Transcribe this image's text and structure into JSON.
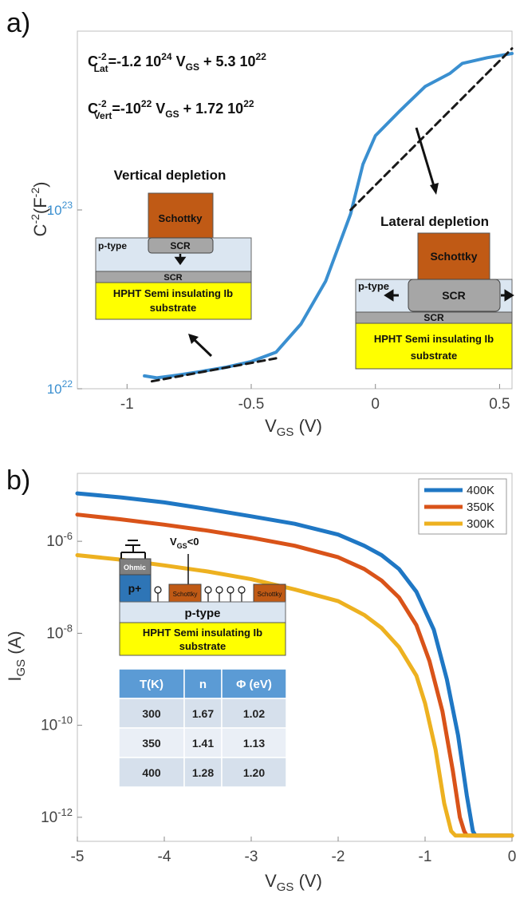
{
  "panels": {
    "a": {
      "label": "a)",
      "equations": {
        "lat": {
          "lhs": "C",
          "sup": "-2",
          "sub": "Lat",
          "rhs_1": "=-1.2 10",
          "rhs_1_exp": "24",
          "rhs_2": " V",
          "rhs_2_sub": "GS",
          "rhs_3": " + 5.3 10",
          "rhs_3_exp": "22"
        },
        "vert": {
          "lhs": "C",
          "sup": "-2",
          "sub": "Vert",
          "rhs_1": "=-10",
          "rhs_1_exp": "22",
          "rhs_2": " V",
          "rhs_2_sub": "GS",
          "rhs_3": " + 1.72 10",
          "rhs_3_exp": "22"
        }
      },
      "inset_vertical": {
        "title": "Vertical depletion",
        "schottky": "Schottky",
        "scr_top": "SCR",
        "ptype": "p-type",
        "scr_bottom": "SCR",
        "substrate_line1": "HPHT Semi insulating Ib",
        "substrate_line2": "substrate"
      },
      "inset_lateral": {
        "title": "Lateral depletion",
        "schottky": "Schottky",
        "scr": "SCR",
        "ptype": "p-type",
        "scr_bottom": "SCR",
        "substrate_line1": "HPHT Semi insulating Ib",
        "substrate_line2": "substrate"
      }
    },
    "b": {
      "label": "b)",
      "inset": {
        "vgs_label": "V",
        "vgs_sub": "GS",
        "vgs_rest": "<0",
        "ohmic": "Ohmic",
        "pplus": "p+",
        "schottky_1": "Schottky",
        "schottky_2": "Schottky",
        "ptype": "p-type",
        "substrate_line1": "HPHT Semi insulating Ib",
        "substrate_line2": "substrate"
      },
      "table": {
        "headers": [
          "T(K)",
          "n",
          "Φ (eV)"
        ],
        "rows": [
          [
            "300",
            "1.67",
            "1.02"
          ],
          [
            "350",
            "1.41",
            "1.13"
          ],
          [
            "400",
            "1.28",
            "1.20"
          ]
        ]
      }
    }
  },
  "colors": {
    "curve_a": "#3a8fd0",
    "fit_a": "#1a1a1a",
    "s400": "#1f77c4",
    "s350": "#d95319",
    "s300": "#edb120",
    "schottky": "#c05a15",
    "substrate": "#ffff00",
    "ptype": "#dbe6f1",
    "scr": "#a6a6a6",
    "pplus": "#2e75b6",
    "ohmic": "#7f7f7f",
    "table_head": "#5b9bd5",
    "table_row_odd": "#d6e0ec",
    "table_row_even": "#eaeff6"
  },
  "chart_data": [
    {
      "type": "line",
      "xlabel": "V",
      "xlabel_sub": "GS",
      "xlabel_unit": " (V)",
      "ylabel": "C",
      "ylabel_sup": "-2",
      "ylabel_unit": "(F",
      "ylabel_unit_sup": "-2",
      "ylabel_close": ")",
      "yscale": "log",
      "xlim": [
        -1.2,
        0.55
      ],
      "ylim": [
        1e+22,
        1e+24
      ],
      "x_ticks": [
        -1,
        -0.5,
        0,
        0.5
      ],
      "x_tick_labels": [
        "-1",
        "-0.5",
        "0",
        "0.5"
      ],
      "y_ticks": [
        {
          "value": 1e+22,
          "base": "10",
          "exp": "22"
        },
        {
          "value": 1e+23,
          "base": "10",
          "exp": "23"
        }
      ],
      "grid": false,
      "series": [
        {
          "style": "solid",
          "x": [
            -0.93,
            -0.88,
            -0.8,
            -0.7,
            -0.6,
            -0.5,
            -0.4,
            -0.3,
            -0.2,
            -0.1,
            -0.05,
            0,
            0.1,
            0.2,
            0.3,
            0.35,
            0.45,
            0.55
          ],
          "y": [
            1.18e+22,
            1.15e+22,
            1.19e+22,
            1.25e+22,
            1.32e+22,
            1.42e+22,
            1.6e+22,
            2.3e+22,
            4e+22,
            9.5e+22,
            1.8e+23,
            2.6e+23,
            3.6e+23,
            4.9e+23,
            5.8e+23,
            6.6e+23,
            7.1e+23,
            7.5e+23
          ]
        },
        {
          "style": "dashed",
          "x": [
            -0.9,
            -0.4
          ],
          "y": [
            1.1e+22,
            1.48e+22
          ]
        },
        {
          "style": "dashed",
          "x": [
            -0.1,
            0.55
          ],
          "y": [
            1e+23,
            8e+23
          ]
        }
      ]
    },
    {
      "type": "line",
      "xlabel": "V",
      "xlabel_sub": "GS",
      "xlabel_unit": " (V)",
      "ylabel": "I",
      "ylabel_sub": "GS",
      "ylabel_unit": " (A)",
      "yscale": "log",
      "xlim": [
        -5,
        0
      ],
      "ylim": [
        3e-13,
        3e-05
      ],
      "x_ticks": [
        -5,
        -4,
        -3,
        -2,
        -1,
        0
      ],
      "x_tick_labels": [
        "-5",
        "-4",
        "-3",
        "-2",
        "-1",
        "0"
      ],
      "y_ticks": [
        {
          "value": 1e-06,
          "base": "10",
          "exp": "-6"
        },
        {
          "value": 1e-08,
          "base": "10",
          "exp": "-8"
        },
        {
          "value": 1e-10,
          "base": "10",
          "exp": "-10"
        },
        {
          "value": 1e-12,
          "base": "10",
          "exp": "-12"
        }
      ],
      "grid": false,
      "legend_position": "top-right",
      "series": [
        {
          "name": "400K",
          "x": [
            -5,
            -4.5,
            -4,
            -3.5,
            -3,
            -2.5,
            -2,
            -1.7,
            -1.5,
            -1.3,
            -1.1,
            -0.9,
            -0.75,
            -0.62,
            -0.52,
            -0.45,
            -0.42,
            0
          ],
          "y": [
            1.1e-05,
            9e-06,
            7e-06,
            5e-06,
            3.5e-06,
            2.4e-06,
            1.4e-06,
            8e-07,
            5e-07,
            2.5e-07,
            8e-08,
            1.2e-08,
            1e-09,
            6e-11,
            3e-12,
            5e-13,
            4e-13,
            4e-13
          ]
        },
        {
          "name": "350K",
          "x": [
            -5,
            -4.5,
            -4,
            -3.5,
            -3,
            -2.5,
            -2,
            -1.7,
            -1.5,
            -1.3,
            -1.1,
            -0.95,
            -0.8,
            -0.68,
            -0.6,
            -0.55,
            -0.52,
            0
          ],
          "y": [
            3.8e-06,
            3e-06,
            2.3e-06,
            1.7e-06,
            1.2e-06,
            8e-07,
            4.5e-07,
            2.5e-07,
            1.4e-07,
            6e-08,
            1.5e-08,
            2.5e-09,
            2e-10,
            1e-11,
            1e-12,
            5e-13,
            4e-13,
            4e-13
          ]
        },
        {
          "name": "300K",
          "x": [
            -5,
            -4.5,
            -4,
            -3.5,
            -3,
            -2.5,
            -2,
            -1.7,
            -1.5,
            -1.3,
            -1.1,
            -1.0,
            -0.88,
            -0.78,
            -0.7,
            -0.65,
            -0.62,
            0
          ],
          "y": [
            5e-07,
            4e-07,
            3e-07,
            2.2e-07,
            1.5e-07,
            9e-08,
            5e-08,
            2.5e-08,
            1.3e-08,
            5e-09,
            1.2e-09,
            3e-10,
            3e-11,
            2e-12,
            5e-13,
            4e-13,
            4e-13,
            4e-13
          ]
        }
      ]
    }
  ]
}
